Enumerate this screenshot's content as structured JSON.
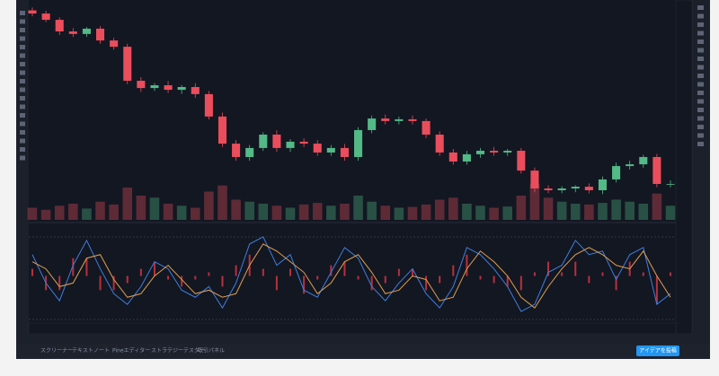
{
  "chart_data": {
    "type": "candlestick",
    "ylim": [
      150000,
      255000
    ],
    "up_color": "#53b987",
    "down_color": "#eb4d5c",
    "open": [
      252000,
      250400,
      247200,
      241300,
      240000,
      242700,
      236700,
      233500,
      216200,
      212500,
      213900,
      211600,
      213000,
      209400,
      198000,
      184200,
      177400,
      182000,
      188800,
      182000,
      185200,
      184200,
      179700,
      182000,
      177400,
      191100,
      197000,
      195700,
      196600,
      195700,
      188800,
      179700,
      175100,
      178800,
      180600,
      179700,
      180600,
      170500,
      161400,
      160500,
      161400,
      162300,
      160500,
      166000,
      172800,
      173700,
      177400,
      163700
    ],
    "high": [
      253500,
      251800,
      248500,
      243000,
      243500,
      244000,
      238000,
      235000,
      218000,
      215000,
      216000,
      214000,
      215000,
      211000,
      200000,
      186000,
      183500,
      190000,
      191000,
      186500,
      187000,
      186000,
      183500,
      184000,
      192500,
      198500,
      199000,
      198000,
      198500,
      197000,
      190500,
      181500,
      180500,
      182000,
      182500,
      181500,
      182000,
      172000,
      163000,
      162500,
      163000,
      164000,
      167500,
      174500,
      175500,
      178500,
      179000,
      165500
    ],
    "low": [
      249000,
      246000,
      239500,
      238500,
      238500,
      235000,
      232000,
      214500,
      210500,
      211000,
      210000,
      209500,
      207500,
      196500,
      182500,
      175500,
      175500,
      180500,
      180000,
      180000,
      182500,
      178000,
      178000,
      175500,
      175500,
      189500,
      194000,
      194000,
      194000,
      187000,
      178000,
      173500,
      173500,
      177000,
      178000,
      178000,
      169000,
      159500,
      159000,
      159000,
      159500,
      159000,
      158500,
      164500,
      171000,
      172000,
      162000,
      162000
    ],
    "close": [
      250400,
      247200,
      241300,
      240000,
      242700,
      236700,
      233500,
      216200,
      212500,
      213900,
      211600,
      213000,
      209400,
      198000,
      184200,
      177400,
      182000,
      188800,
      182000,
      185200,
      184200,
      179700,
      182000,
      177400,
      191100,
      197000,
      195700,
      196600,
      195700,
      188800,
      179700,
      175100,
      178800,
      180600,
      179700,
      180600,
      170500,
      161400,
      160500,
      161400,
      162300,
      160500,
      166000,
      172800,
      173700,
      177400,
      163700,
      163700
    ],
    "volume": {
      "ylim": [
        0,
        100
      ],
      "values": [
        30,
        25,
        35,
        40,
        28,
        45,
        38,
        80,
        60,
        55,
        40,
        35,
        30,
        70,
        85,
        50,
        45,
        40,
        35,
        30,
        38,
        42,
        35,
        40,
        60,
        45,
        35,
        30,
        32,
        38,
        50,
        55,
        40,
        35,
        30,
        33,
        60,
        90,
        55,
        45,
        40,
        38,
        42,
        50,
        45,
        40,
        65,
        35
      ]
    },
    "indicator": {
      "ylim": [
        -1.2,
        1.2
      ],
      "histogram_color": "#b8303c",
      "series": [
        {
          "color": "#3d7fe0",
          "values": [
            0.6,
            -0.2,
            -0.7,
            0.3,
            1.0,
            0.2,
            -0.5,
            -0.8,
            -0.3,
            0.4,
            0.2,
            -0.4,
            -0.6,
            -0.3,
            -0.9,
            -0.2,
            0.9,
            1.1,
            0.3,
            0.6,
            -0.4,
            -0.6,
            0.1,
            0.8,
            0.5,
            -0.3,
            -0.7,
            -0.2,
            0.2,
            -0.5,
            -0.9,
            -0.3,
            0.8,
            0.6,
            0.2,
            -0.3,
            -1.0,
            -0.8,
            0.1,
            0.3,
            1.0,
            0.6,
            0.7,
            -0.1,
            0.6,
            0.8,
            -0.8,
            -0.5
          ]
        },
        {
          "color": "#e0a050",
          "values": [
            0.4,
            0.2,
            -0.3,
            -0.2,
            0.5,
            0.6,
            -0.1,
            -0.6,
            -0.5,
            0.0,
            0.3,
            -0.1,
            -0.5,
            -0.4,
            -0.6,
            -0.5,
            0.3,
            0.9,
            0.7,
            0.4,
            0.1,
            -0.5,
            -0.2,
            0.4,
            0.6,
            0.1,
            -0.5,
            -0.4,
            0.0,
            -0.1,
            -0.7,
            -0.6,
            0.2,
            0.7,
            0.4,
            0.0,
            -0.6,
            -0.9,
            -0.3,
            0.2,
            0.6,
            0.8,
            0.6,
            0.3,
            0.2,
            0.7,
            0.0,
            -0.6
          ]
        }
      ],
      "histogram": [
        0.2,
        -0.4,
        -0.4,
        0.5,
        0.5,
        -0.4,
        -0.4,
        -0.2,
        0.2,
        0.4,
        -0.1,
        -0.3,
        -0.1,
        0.1,
        -0.3,
        0.3,
        0.6,
        0.2,
        -0.4,
        0.2,
        -0.5,
        -0.1,
        0.3,
        0.4,
        -0.1,
        -0.4,
        -0.2,
        0.2,
        0.2,
        -0.4,
        -0.2,
        0.3,
        0.6,
        -0.1,
        -0.2,
        -0.3,
        -0.4,
        0.1,
        0.4,
        0.1,
        0.4,
        -0.2,
        0.1,
        -0.4,
        0.4,
        0.1,
        -0.8,
        0.1
      ]
    }
  },
  "tabs": [
    "スクリーナー",
    "テキストノート",
    "Pineエディター",
    "ストラテジーテスター",
    "取引パネル"
  ],
  "button": "アイデアを投稿"
}
